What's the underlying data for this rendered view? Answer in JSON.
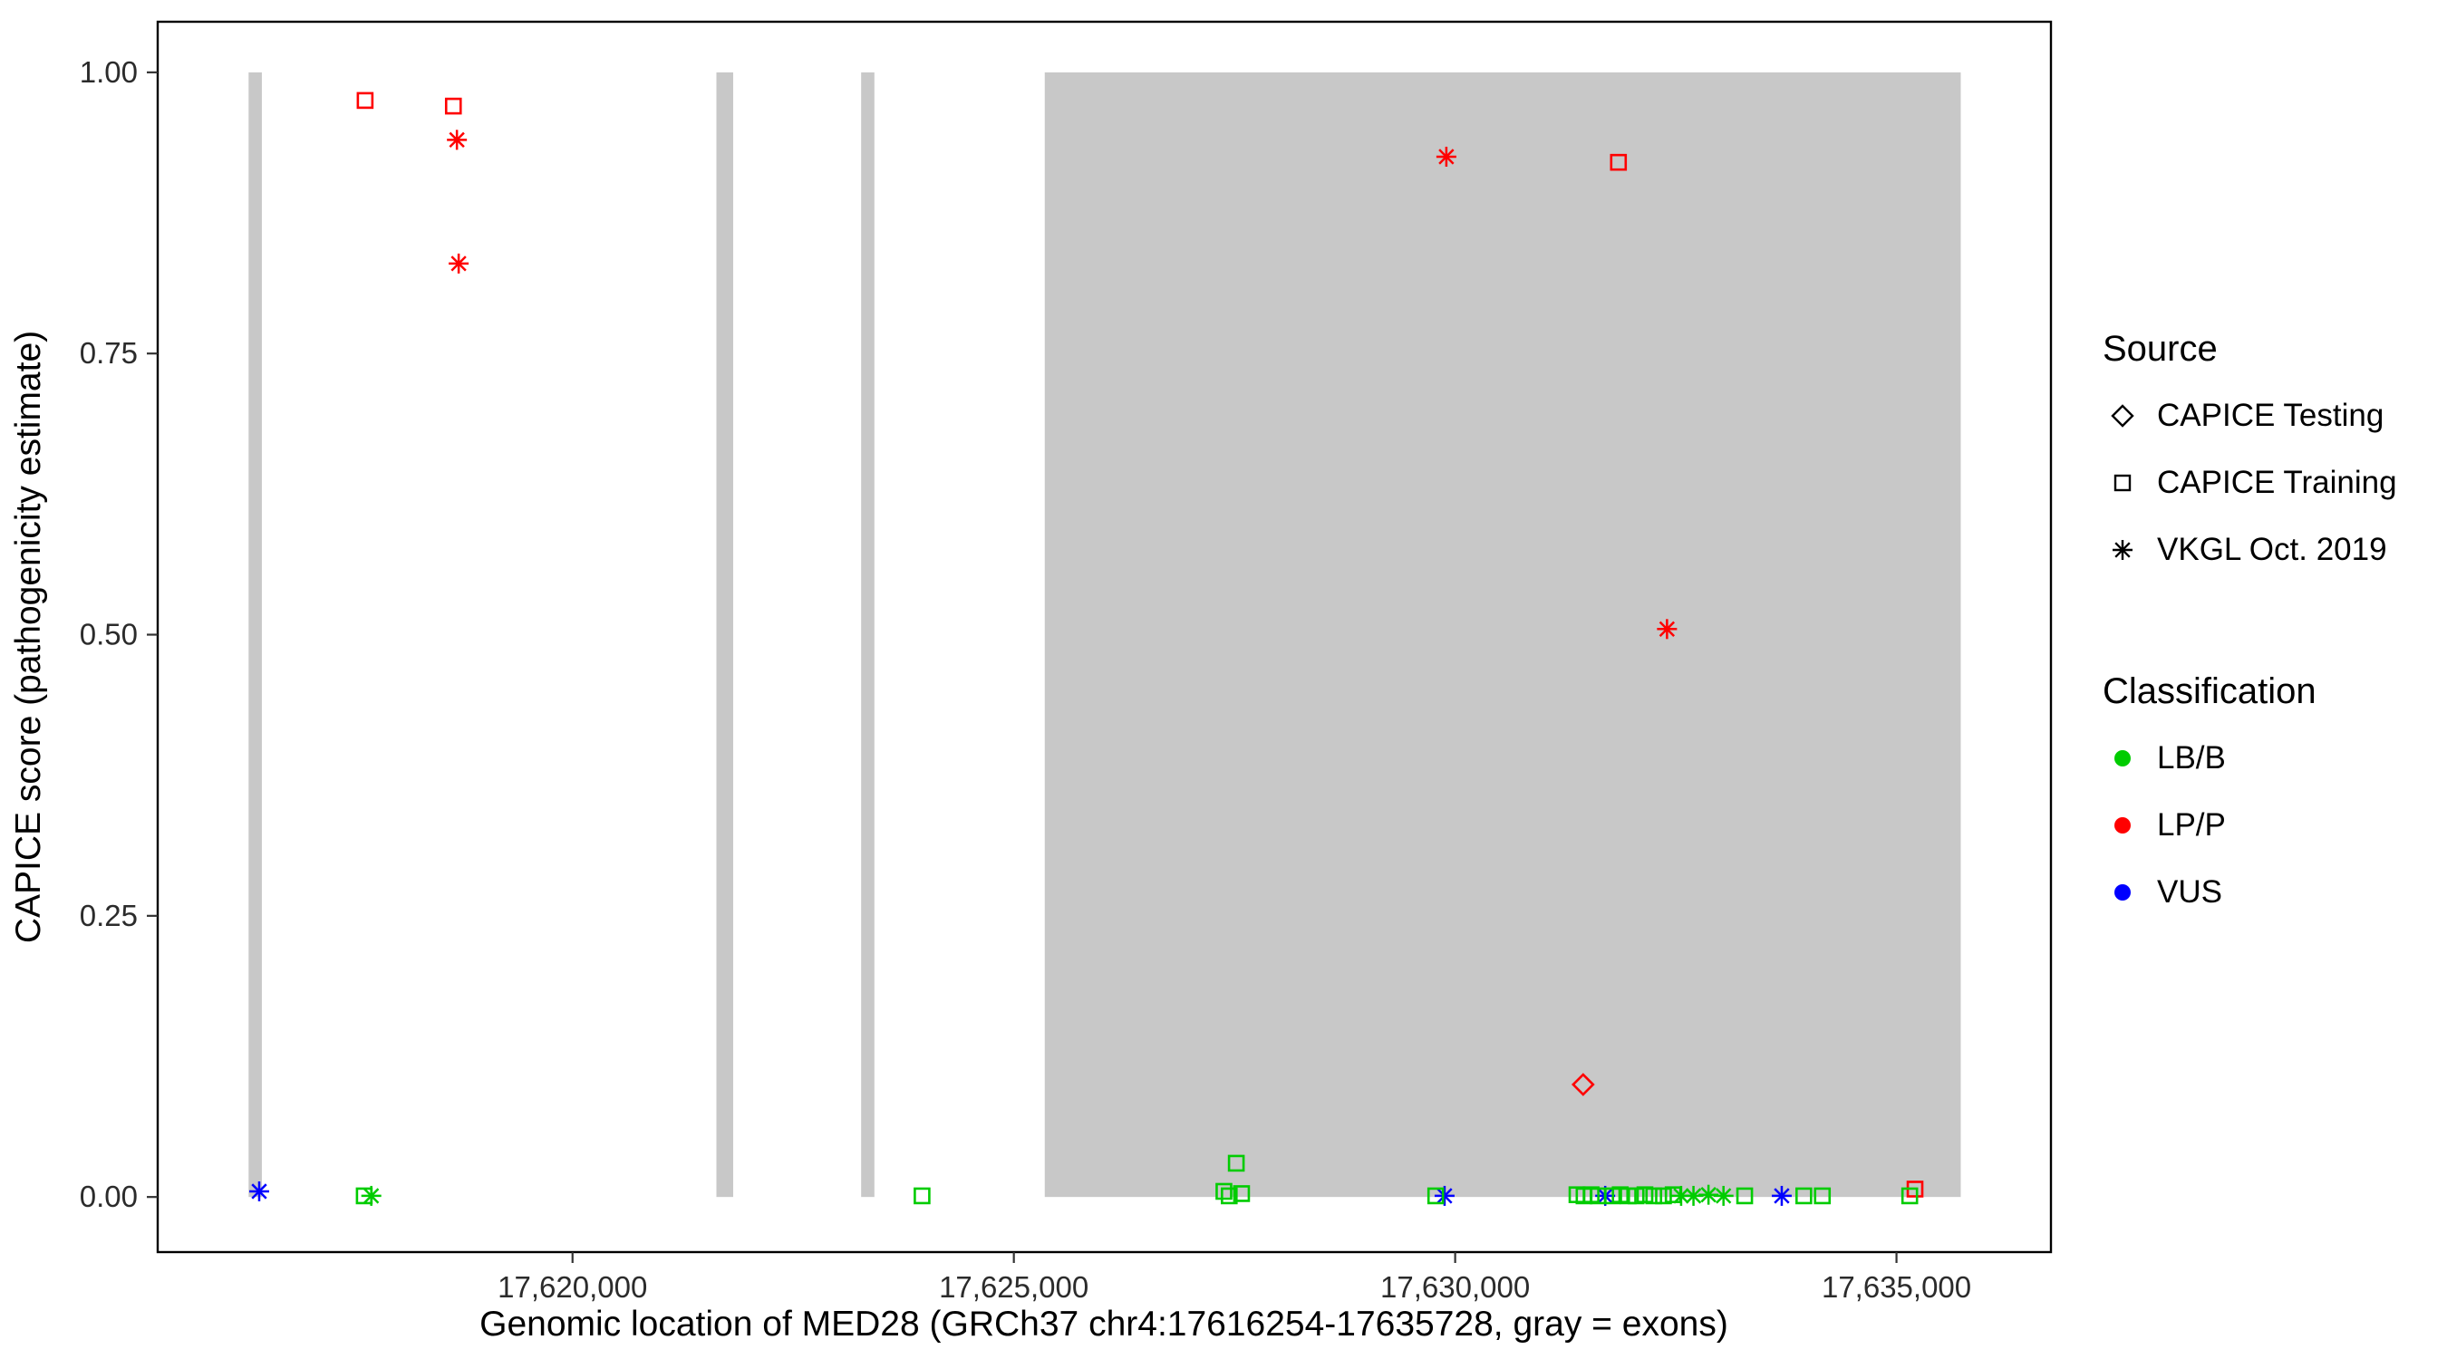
{
  "legend": {
    "source_title": "Source",
    "source_items": [
      {
        "label": "CAPICE Testing",
        "shape": "diamond"
      },
      {
        "label": "CAPICE Training",
        "shape": "square"
      },
      {
        "label": "VKGL Oct. 2019",
        "shape": "asterisk"
      }
    ],
    "classification_title": "Classification",
    "classification_items": [
      {
        "label": "LB/B",
        "color": "#00cc00"
      },
      {
        "label": "LP/P",
        "color": "#ff0000"
      },
      {
        "label": "VUS",
        "color": "#0000ff"
      }
    ]
  },
  "chart_data": {
    "type": "scatter",
    "title": "",
    "xlabel": "Genomic location of MED28 (GRCh37 chr4:17616254-17635728, gray = exons)",
    "ylabel": "CAPICE score (pathogenicity estimate)",
    "xlim": [
      17615300,
      17636750
    ],
    "ylim": [
      -0.049,
      1.045
    ],
    "grid": false,
    "legend_position": "right",
    "x_ticks": [
      {
        "value": 17620000,
        "label": "17,620,000"
      },
      {
        "value": 17625000,
        "label": "17,625,000"
      },
      {
        "value": 17630000,
        "label": "17,630,000"
      },
      {
        "value": 17635000,
        "label": "17,635,000"
      }
    ],
    "y_ticks": [
      {
        "value": 0.0,
        "label": "0.00"
      },
      {
        "value": 0.25,
        "label": "0.25"
      },
      {
        "value": 0.5,
        "label": "0.50"
      },
      {
        "value": 0.75,
        "label": "0.75"
      },
      {
        "value": 1.0,
        "label": "1.00"
      }
    ],
    "exon_fill": "#c8c8c8",
    "exon_value_range": [
      0,
      1
    ],
    "exons": [
      [
        17616330,
        17616480
      ],
      [
        17621630,
        17621820
      ],
      [
        17623270,
        17623420
      ],
      [
        17625350,
        17635728
      ]
    ],
    "classification_colors": {
      "LB/B": "#00cc00",
      "LP/P": "#ff0000",
      "VUS": "#0000ff"
    },
    "source_shapes": {
      "CAPICE Testing": "diamond",
      "CAPICE Training": "square",
      "VKGL Oct. 2019": "asterisk"
    },
    "points": [
      {
        "x": 17617650,
        "y": 0.975,
        "classification": "LP/P",
        "source": "CAPICE Training"
      },
      {
        "x": 17618650,
        "y": 0.97,
        "classification": "LP/P",
        "source": "CAPICE Training"
      },
      {
        "x": 17618690,
        "y": 0.94,
        "classification": "LP/P",
        "source": "VKGL Oct. 2019"
      },
      {
        "x": 17618710,
        "y": 0.83,
        "classification": "LP/P",
        "source": "VKGL Oct. 2019"
      },
      {
        "x": 17629900,
        "y": 0.925,
        "classification": "LP/P",
        "source": "VKGL Oct. 2019"
      },
      {
        "x": 17631850,
        "y": 0.92,
        "classification": "LP/P",
        "source": "CAPICE Training"
      },
      {
        "x": 17632400,
        "y": 0.505,
        "classification": "LP/P",
        "source": "VKGL Oct. 2019"
      },
      {
        "x": 17631450,
        "y": 0.1,
        "classification": "LP/P",
        "source": "CAPICE Testing"
      },
      {
        "x": 17635210,
        "y": 0.007,
        "classification": "LP/P",
        "source": "CAPICE Training"
      },
      {
        "x": 17616450,
        "y": 0.005,
        "classification": "VUS",
        "source": "VKGL Oct. 2019"
      },
      {
        "x": 17629880,
        "y": 0.001,
        "classification": "VUS",
        "source": "VKGL Oct. 2019"
      },
      {
        "x": 17631700,
        "y": 0.001,
        "classification": "VUS",
        "source": "VKGL Oct. 2019"
      },
      {
        "x": 17633700,
        "y": 0.001,
        "classification": "VUS",
        "source": "VKGL Oct. 2019"
      },
      {
        "x": 17617640,
        "y": 0.001,
        "classification": "LB/B",
        "source": "CAPICE Training"
      },
      {
        "x": 17617720,
        "y": 0.001,
        "classification": "LB/B",
        "source": "VKGL Oct. 2019"
      },
      {
        "x": 17623960,
        "y": 0.001,
        "classification": "LB/B",
        "source": "CAPICE Training"
      },
      {
        "x": 17627380,
        "y": 0.005,
        "classification": "LB/B",
        "source": "CAPICE Training"
      },
      {
        "x": 17627440,
        "y": 0.001,
        "classification": "LB/B",
        "source": "CAPICE Training"
      },
      {
        "x": 17627520,
        "y": 0.03,
        "classification": "LB/B",
        "source": "CAPICE Training"
      },
      {
        "x": 17627580,
        "y": 0.003,
        "classification": "LB/B",
        "source": "CAPICE Training"
      },
      {
        "x": 17629780,
        "y": 0.001,
        "classification": "LB/B",
        "source": "CAPICE Training"
      },
      {
        "x": 17631380,
        "y": 0.002,
        "classification": "LB/B",
        "source": "CAPICE Training"
      },
      {
        "x": 17631460,
        "y": 0.001,
        "classification": "LB/B",
        "source": "CAPICE Training"
      },
      {
        "x": 17631540,
        "y": 0.002,
        "classification": "LB/B",
        "source": "CAPICE Training"
      },
      {
        "x": 17631620,
        "y": 0.001,
        "classification": "LB/B",
        "source": "CAPICE Training"
      },
      {
        "x": 17631780,
        "y": 0.001,
        "classification": "LB/B",
        "source": "CAPICE Training"
      },
      {
        "x": 17631870,
        "y": 0.002,
        "classification": "LB/B",
        "source": "CAPICE Training"
      },
      {
        "x": 17631960,
        "y": 0.001,
        "classification": "LB/B",
        "source": "CAPICE Training"
      },
      {
        "x": 17632050,
        "y": 0.001,
        "classification": "LB/B",
        "source": "CAPICE Training"
      },
      {
        "x": 17632150,
        "y": 0.002,
        "classification": "LB/B",
        "source": "CAPICE Training"
      },
      {
        "x": 17632250,
        "y": 0.001,
        "classification": "LB/B",
        "source": "CAPICE Training"
      },
      {
        "x": 17632360,
        "y": 0.001,
        "classification": "LB/B",
        "source": "CAPICE Training"
      },
      {
        "x": 17632470,
        "y": 0.002,
        "classification": "LB/B",
        "source": "CAPICE Training"
      },
      {
        "x": 17632560,
        "y": 0.001,
        "classification": "LB/B",
        "source": "VKGL Oct. 2019"
      },
      {
        "x": 17632700,
        "y": 0.001,
        "classification": "LB/B",
        "source": "VKGL Oct. 2019"
      },
      {
        "x": 17632870,
        "y": 0.002,
        "classification": "LB/B",
        "source": "VKGL Oct. 2019"
      },
      {
        "x": 17633040,
        "y": 0.001,
        "classification": "LB/B",
        "source": "VKGL Oct. 2019"
      },
      {
        "x": 17633280,
        "y": 0.001,
        "classification": "LB/B",
        "source": "CAPICE Training"
      },
      {
        "x": 17633950,
        "y": 0.001,
        "classification": "LB/B",
        "source": "CAPICE Training"
      },
      {
        "x": 17634160,
        "y": 0.001,
        "classification": "LB/B",
        "source": "CAPICE Training"
      },
      {
        "x": 17635150,
        "y": 0.001,
        "classification": "LB/B",
        "source": "CAPICE Training"
      }
    ]
  }
}
